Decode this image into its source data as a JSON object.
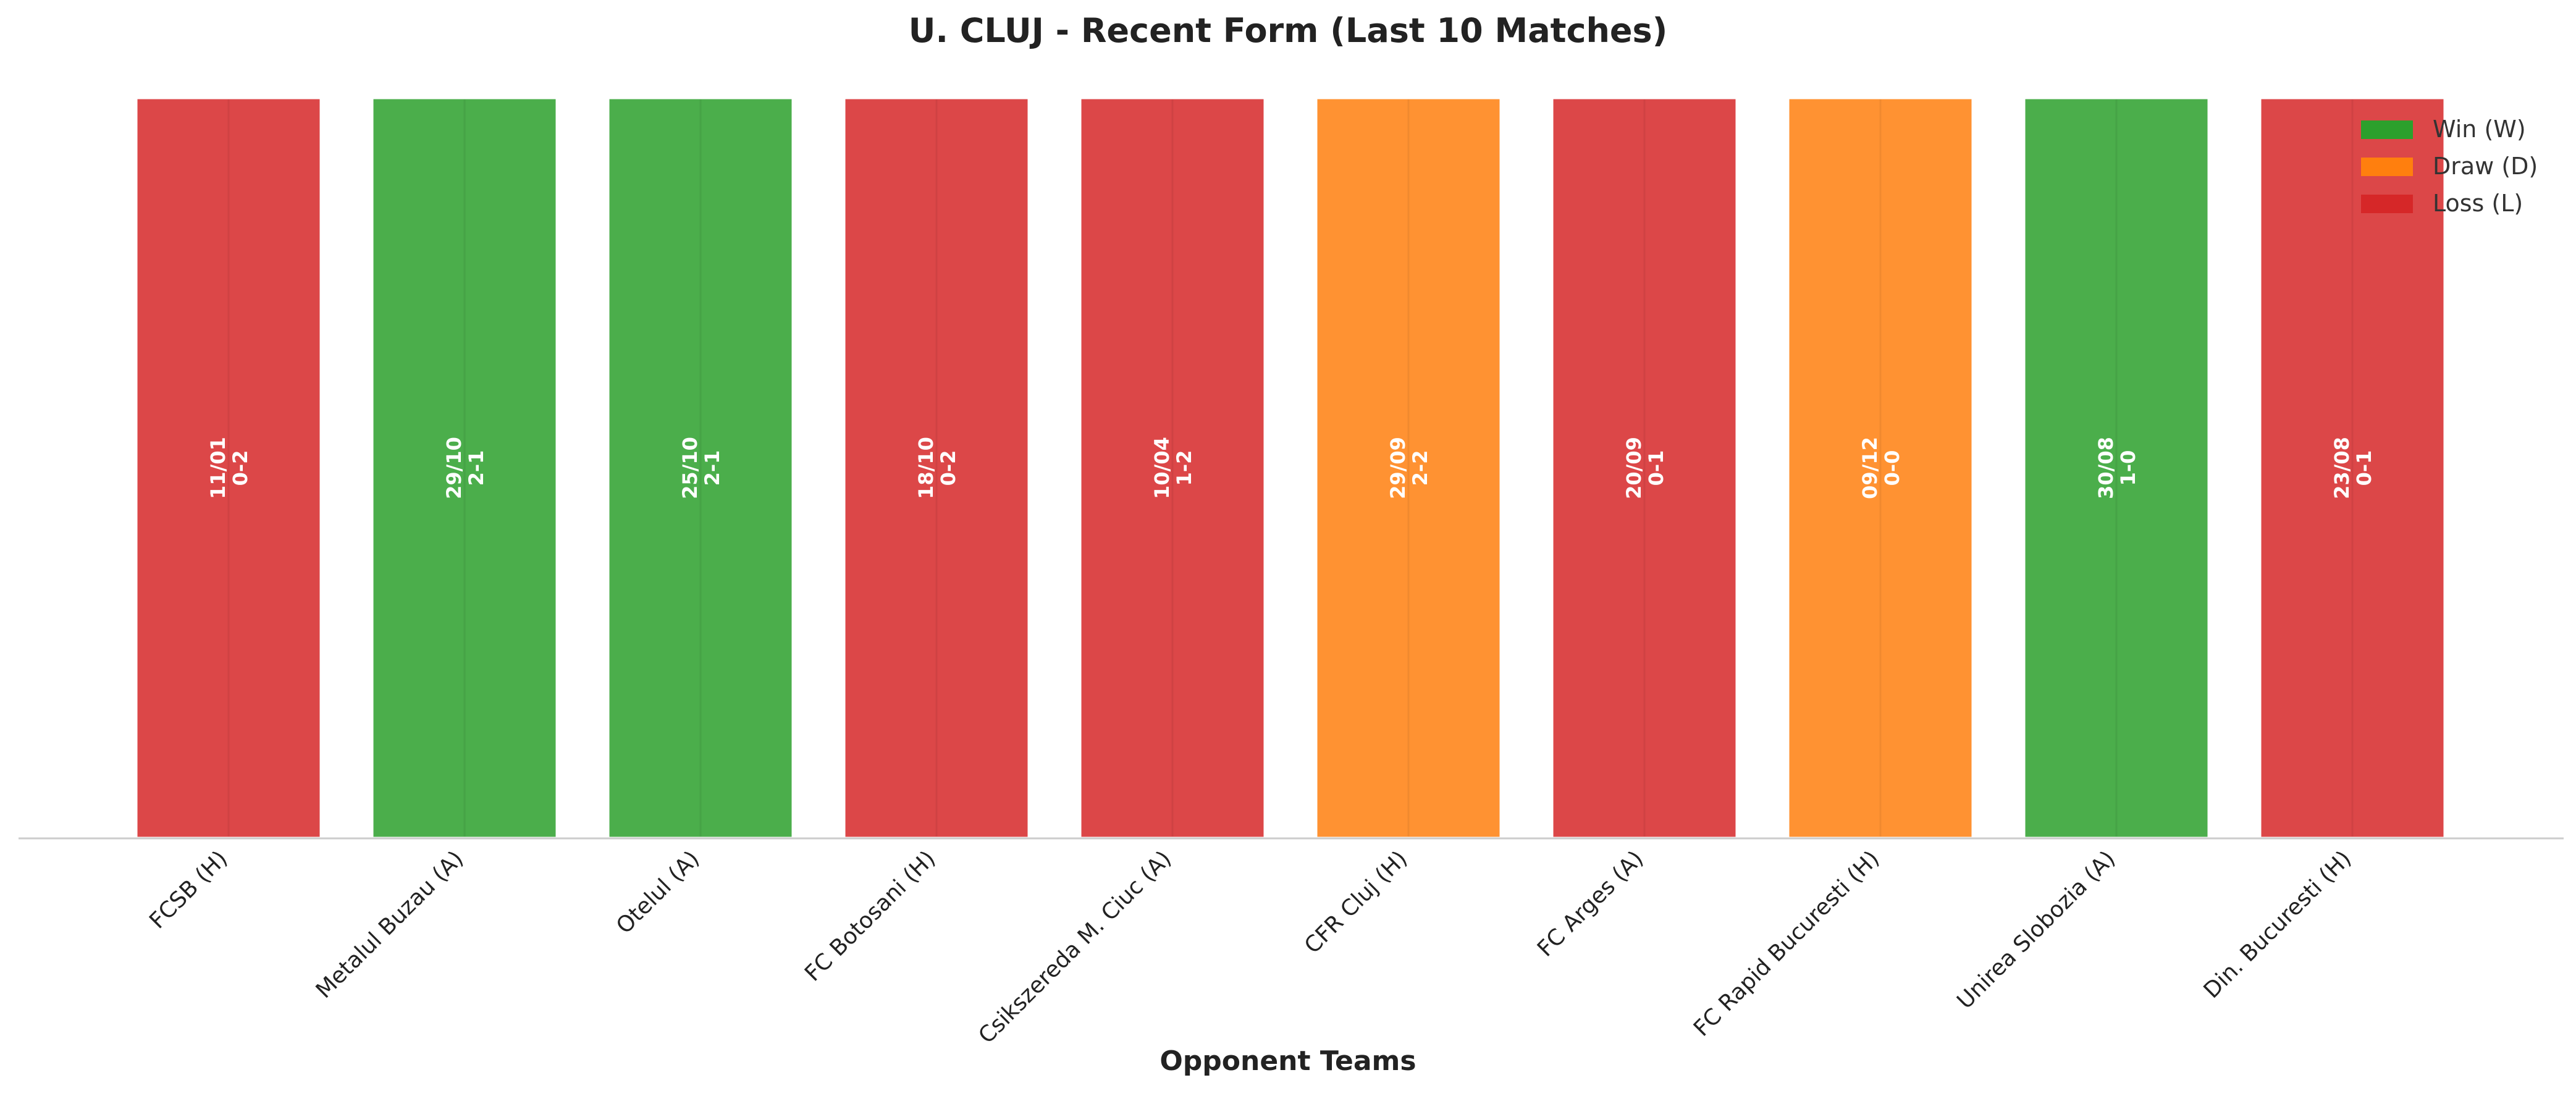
{
  "chart_data": {
    "type": "bar",
    "title": "U. CLUJ - Recent Form (Last 10 Matches)",
    "xlabel": "Opponent Teams",
    "ylabel": "",
    "categories": [
      "FCSB (H)",
      "Metalul Buzau (A)",
      "Otelul (A)",
      "FC Botosani (H)",
      "Csikszereda M. Ciuc (A)",
      "CFR Cluj (H)",
      "FC Arges (A)",
      "FC Rapid Bucuresti (H)",
      "Unirea Slobozia (A)",
      "Din. Bucuresti (H)"
    ],
    "values": [
      1,
      1,
      1,
      1,
      1,
      1,
      1,
      1,
      1,
      1
    ],
    "ylim": [
      0,
      1
    ],
    "results": [
      "L",
      "W",
      "W",
      "L",
      "L",
      "D",
      "L",
      "D",
      "W",
      "L"
    ],
    "dates": [
      "11/01",
      "29/10",
      "25/10",
      "18/10",
      "10/04",
      "29/09",
      "20/09",
      "09/12",
      "30/08",
      "23/08"
    ],
    "scores": [
      "0-2",
      "2-1",
      "2-1",
      "0-2",
      "1-2",
      "2-2",
      "0-1",
      "0-0",
      "1-0",
      "0-1"
    ],
    "legend": [
      {
        "key": "W",
        "label": "Win (W)",
        "color": "#2ca02c"
      },
      {
        "key": "D",
        "label": "Draw (D)",
        "color": "#ff7f0e"
      },
      {
        "key": "L",
        "label": "Loss (L)",
        "color": "#d62728"
      }
    ],
    "legend_position": "top-right",
    "grid": false
  }
}
